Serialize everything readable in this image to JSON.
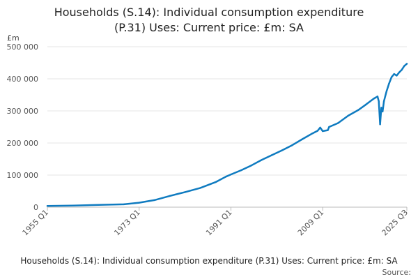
{
  "chart_data": {
    "type": "line",
    "title_lines": [
      "Households (S.14): Individual consumption expenditure",
      "(P.31) Uses: Current price: £m: SA"
    ],
    "unit_label": "£m",
    "y_ticks": [
      "0",
      "100 000",
      "200 000",
      "300 000",
      "400 000",
      "500 000"
    ],
    "y_tick_values": [
      0,
      100000,
      200000,
      300000,
      400000,
      500000
    ],
    "ylim": [
      0,
      500000
    ],
    "x_ticks": [
      "1955 Q1",
      "1973 Q1",
      "1991 Q1",
      "2009 Q1",
      "2025 Q3"
    ],
    "x_tick_values": [
      1955.0,
      1973.0,
      1991.0,
      2009.0,
      2025.5
    ],
    "xlim": [
      1955.0,
      2025.5
    ],
    "series": [
      {
        "name": "Households (S.14): Individual consumption expenditure (P.31) Uses: Current price: £m: SA",
        "color": "#0f7bc0",
        "x": [
          1955.0,
          1960.0,
          1965.0,
          1970.0,
          1973.0,
          1976.0,
          1979.0,
          1982.0,
          1985.0,
          1988.0,
          1990.0,
          1991.0,
          1993.0,
          1995.0,
          1997.0,
          1999.0,
          2001.0,
          2003.0,
          2005.0,
          2007.0,
          2008.0,
          2008.5,
          2009.0,
          2010.0,
          2010.25,
          2012.0,
          2014.0,
          2016.0,
          2017.5,
          2019.0,
          2019.75,
          2020.0,
          2020.25,
          2020.5,
          2020.75,
          2021.0,
          2021.5,
          2022.0,
          2022.5,
          2023.0,
          2023.5,
          2024.0,
          2024.5,
          2025.0,
          2025.5
        ],
        "values": [
          4000,
          5000,
          7000,
          9000,
          14000,
          22000,
          35000,
          47000,
          60000,
          78000,
          95000,
          102000,
          115000,
          130000,
          147000,
          162000,
          177000,
          193000,
          212000,
          230000,
          238000,
          248000,
          237000,
          240000,
          250000,
          262000,
          285000,
          303000,
          320000,
          338000,
          345000,
          330000,
          258000,
          310000,
          298000,
          330000,
          360000,
          385000,
          405000,
          415000,
          410000,
          420000,
          428000,
          440000,
          447000
        ]
      }
    ],
    "legend_text": "Households (S.14): Individual consumption expenditure (P.31) Uses: Current price: £m: SA",
    "source_text": "Source:"
  }
}
